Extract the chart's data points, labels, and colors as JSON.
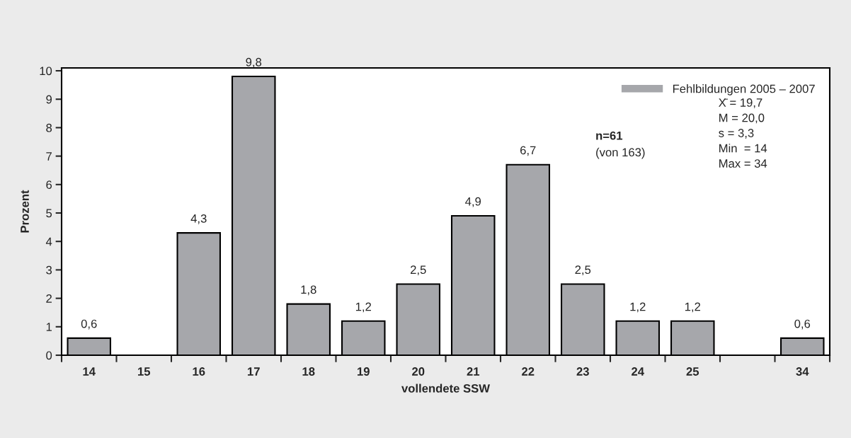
{
  "chart_data": {
    "type": "bar",
    "xlabel": "vollendete SSW",
    "ylabel": "Prozent",
    "categories": [
      "14",
      "15",
      "16",
      "17",
      "18",
      "19",
      "20",
      "21",
      "22",
      "23",
      "24",
      "25",
      null,
      "34"
    ],
    "series": [
      {
        "name": "Fehlbildungen 2005 – 2007",
        "color": "#a6a7ab",
        "values": [
          0.6,
          null,
          4.3,
          9.8,
          1.8,
          1.2,
          2.5,
          4.9,
          6.7,
          2.5,
          1.2,
          1.2,
          null,
          0.6
        ],
        "value_labels": [
          "0,6",
          null,
          "4,3",
          "9,8",
          "1,8",
          "1,2",
          "2,5",
          "4,9",
          "6,7",
          "2,5",
          "1,2",
          "1,2",
          null,
          "0,6"
        ]
      }
    ],
    "ylim": [
      0,
      10.1
    ],
    "yticks": [
      0,
      1,
      2,
      3,
      4,
      5,
      6,
      7,
      8,
      9,
      10
    ],
    "grid": false,
    "legend": "top right",
    "annotations": [
      "n=61",
      "(von 163)",
      "X̄ = 19,7",
      "M = 20,0",
      "s = 3,3",
      "Min  = 14",
      "Max = 34"
    ]
  }
}
